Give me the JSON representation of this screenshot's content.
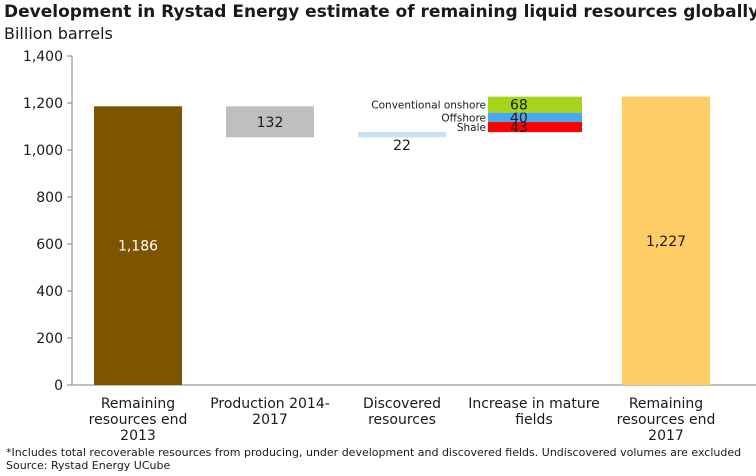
{
  "title": "Development in Rystad Energy estimate of remaining liquid resources globally",
  "subtitle": "Billion barrels",
  "footnote": "*Includes total recoverable resources from producing, under development and discovered fields. Undiscovered volumes are excluded",
  "source": "Source: Rystad Energy UCube",
  "chart_data": {
    "type": "bar",
    "subtype": "waterfall",
    "ylim": [
      0,
      1400
    ],
    "yticks": [
      "0",
      "200",
      "400",
      "600",
      "800",
      "1,000",
      "1,200",
      "1,400"
    ],
    "ytick_values": [
      0,
      200,
      400,
      600,
      800,
      1000,
      1200,
      1400
    ],
    "grid": false,
    "categories": [
      [
        "Remaining",
        "resources end",
        "2013"
      ],
      [
        "Production 2014-",
        "2017"
      ],
      [
        "Discovered",
        "resources"
      ],
      [
        "Increase in mature",
        "fields"
      ],
      [
        "Remaining",
        "resources end",
        "2017"
      ]
    ],
    "bars": [
      {
        "category": 0,
        "base": 0,
        "value": 1186,
        "label": "1,186",
        "color": "#7f5400",
        "label_color": "#ffffff"
      },
      {
        "category": 1,
        "base": 1054,
        "value": 132,
        "label": "132",
        "color": "#bfbfbf",
        "label_color": "#1a1a1a"
      },
      {
        "category": 2,
        "base": 1054,
        "value": 22,
        "label": "22",
        "color": "#c5e0f5",
        "label_color": "#1a1a1a"
      },
      {
        "category": 3,
        "segments": [
          {
            "name": "Shale",
            "base": 1076,
            "value": 43,
            "label": "43",
            "color": "#ff0000"
          },
          {
            "name": "Offshore",
            "base": 1119,
            "value": 40,
            "label": "40",
            "color": "#4aa8f0"
          },
          {
            "name": "Conventional onshore",
            "base": 1159,
            "value": 68,
            "label": "68",
            "color": "#a4d41b"
          }
        ]
      },
      {
        "category": 4,
        "base": 0,
        "value": 1227,
        "label": "1,227",
        "color": "#ffcc66",
        "label_color": "#1a1a1a"
      }
    ]
  }
}
